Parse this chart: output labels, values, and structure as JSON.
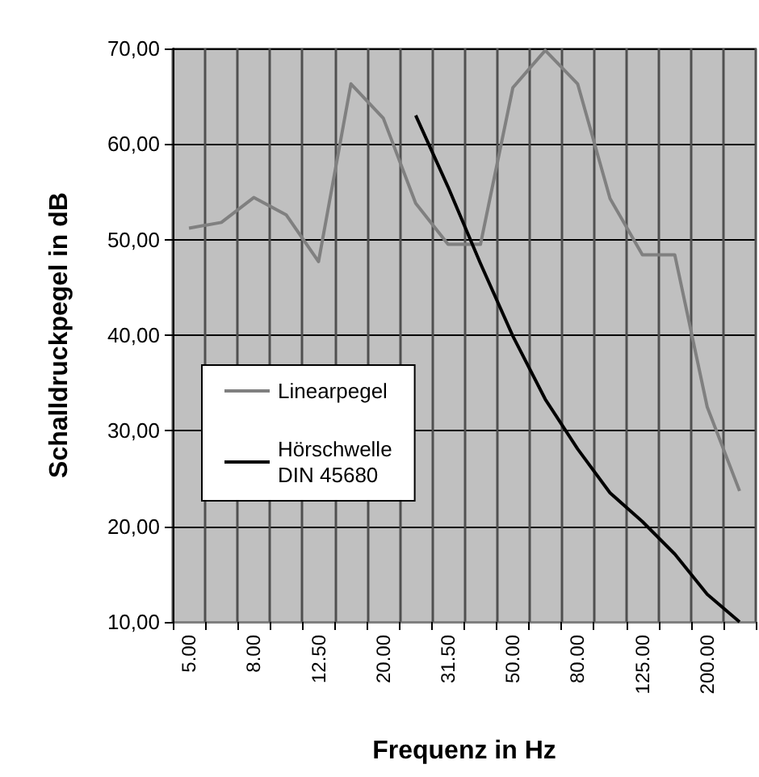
{
  "chart_data": {
    "type": "line",
    "xlabel": "Frequenz in Hz",
    "ylabel": "Schalldruckpegel in dB",
    "categories": [
      "5.00",
      null,
      "8.00",
      null,
      "12.50",
      null,
      "20.00",
      null,
      "31.50",
      null,
      "50.00",
      null,
      "80.00",
      null,
      "125.00",
      null,
      "200.00",
      null
    ],
    "series": [
      {
        "name": "Linearpegel",
        "color": "#808080",
        "values": [
          51.2,
          51.8,
          54.4,
          52.6,
          47.7,
          66.3,
          62.7,
          53.8,
          49.5,
          49.5,
          65.9,
          69.8,
          66.3,
          54.3,
          48.4,
          48.4,
          32.5,
          23.7
        ]
      },
      {
        "name": "Hörschwelle\nDIN 45680",
        "color": "#000000",
        "values": [
          null,
          null,
          null,
          null,
          null,
          null,
          null,
          63,
          55.5,
          47.5,
          39.9,
          33.3,
          28.1,
          23.5,
          20.5,
          17.1,
          12.9,
          10
        ]
      }
    ],
    "ylim": [
      10,
      70
    ],
    "yticks": [
      {
        "value": 10,
        "label": "10,00"
      },
      {
        "value": 20,
        "label": "20,00"
      },
      {
        "value": 30,
        "label": "30,00"
      },
      {
        "value": 40,
        "label": "40,00"
      },
      {
        "value": 50,
        "label": "50,00"
      },
      {
        "value": 60,
        "label": "60,00"
      },
      {
        "value": 70,
        "label": "70,00"
      }
    ],
    "grid": true,
    "legend": "center left",
    "marker": "none",
    "line_style": "solid"
  }
}
